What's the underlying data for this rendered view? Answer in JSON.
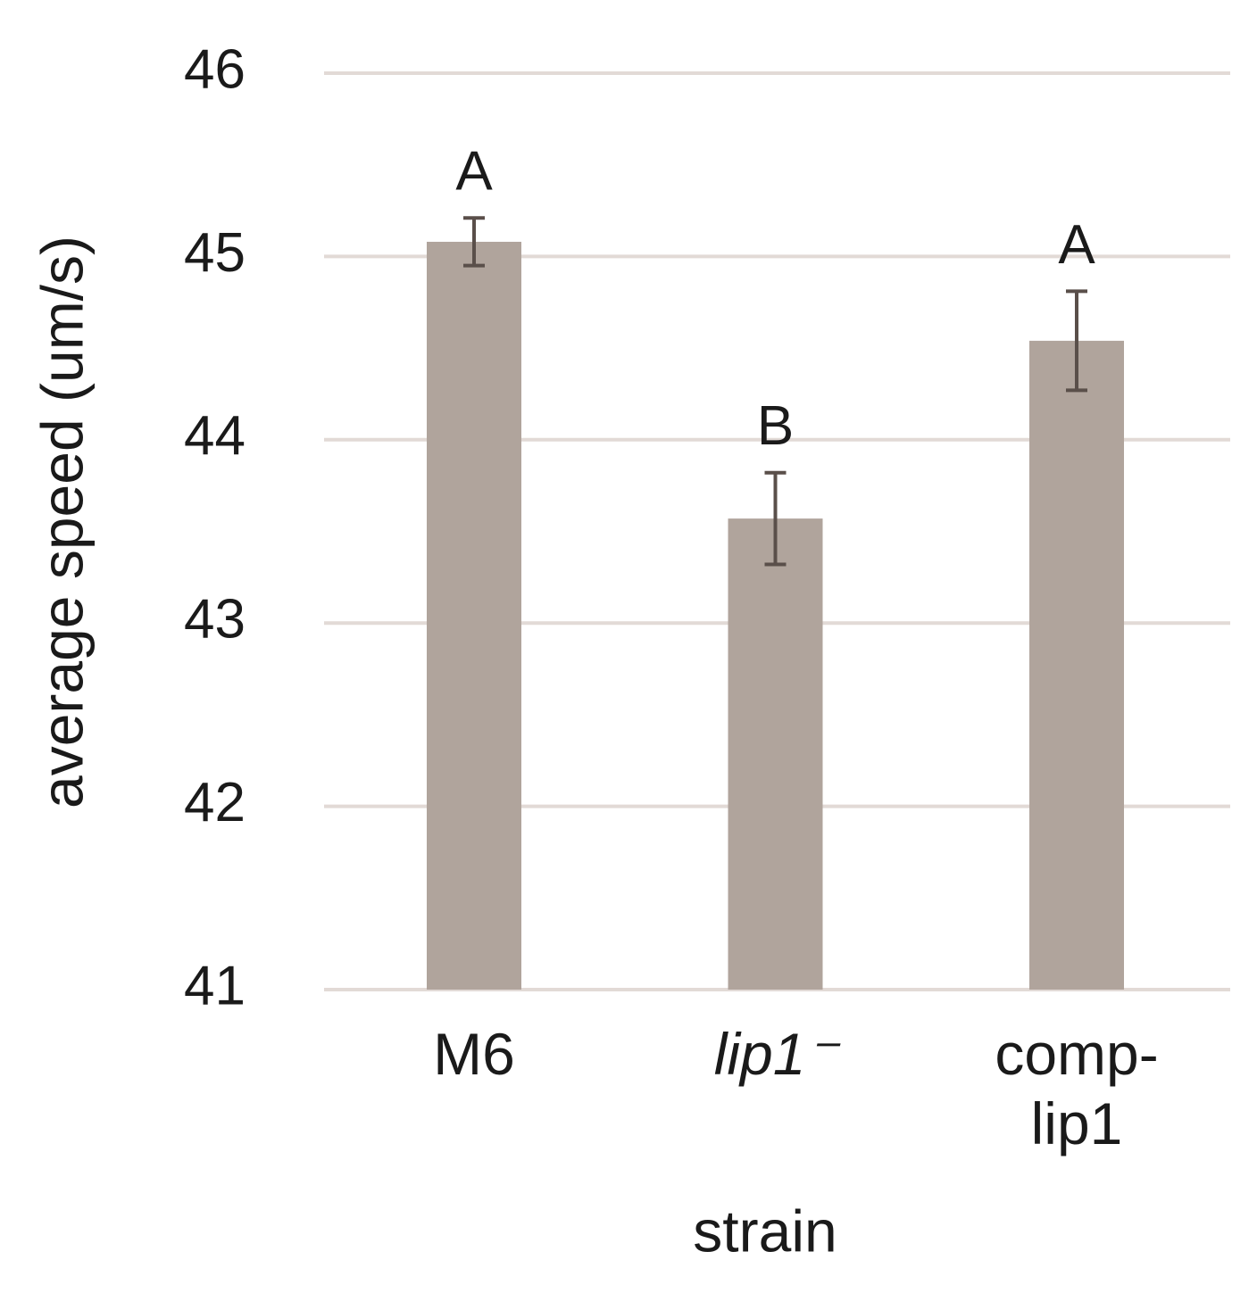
{
  "chart_data": {
    "type": "bar",
    "y_label": "average speed (um/s)",
    "x_label": "strain",
    "categories": [
      "M6",
      "lip1⁻",
      "comp-lip1"
    ],
    "values": [
      45.08,
      43.57,
      44.54
    ],
    "errors": [
      0.13,
      0.25,
      0.27
    ],
    "annotations": [
      "A",
      "B",
      "A"
    ],
    "color": "#b0a49c",
    "error_color": "#5a4f4a",
    "ylim": [
      41,
      46
    ],
    "yticks": [
      41,
      42,
      43,
      44,
      45,
      46
    ],
    "grid": true
  }
}
